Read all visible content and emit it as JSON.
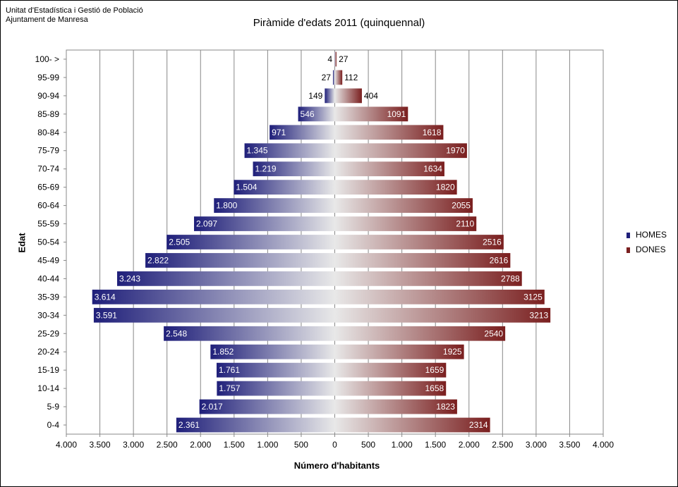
{
  "source": {
    "line1": "Unitat d'Estadística i Gestió de Població",
    "line2": "Ajuntament de Manresa"
  },
  "chart_data": {
    "type": "bar",
    "orientation": "horizontal-population-pyramid",
    "title": "Piràmide d'edats 2011 (quinquennal)",
    "xlabel": "Número d'habitants",
    "ylabel": "Edat",
    "xlim": [
      -4000,
      4000
    ],
    "x_ticks": [
      -4000,
      -3500,
      -3000,
      -2500,
      -2000,
      -1500,
      -1000,
      -500,
      0,
      500,
      1000,
      1500,
      2000,
      2500,
      3000,
      3500,
      4000
    ],
    "x_tick_labels": [
      "4.000",
      "3.500",
      "3.000",
      "2.500",
      "2.000",
      "1.500",
      "1.000",
      "500",
      "0",
      "500",
      "1.000",
      "1.500",
      "2.000",
      "2.500",
      "3.000",
      "3.500",
      "4.000"
    ],
    "grid": "vertical",
    "legend_position": "right",
    "categories": [
      "100- >",
      "95-99",
      "90-94",
      "85-89",
      "80-84",
      "75-79",
      "70-74",
      "65-69",
      "60-64",
      "55-59",
      "50-54",
      "45-49",
      "40-44",
      "35-39",
      "30-34",
      "25-29",
      "20-24",
      "15-19",
      "10-14",
      "5-9",
      "0-4"
    ],
    "series": [
      {
        "name": "HOMES",
        "color": "#1f1f7a",
        "values": [
          4,
          27,
          149,
          546,
          971,
          1345,
          1219,
          1504,
          1800,
          2097,
          2505,
          2822,
          3243,
          3614,
          3591,
          2548,
          1852,
          1761,
          1757,
          2017,
          2361
        ],
        "labels": [
          "4",
          "27",
          "149",
          "546",
          "971",
          "1.345",
          "1.219",
          "1.504",
          "1.800",
          "2.097",
          "2.505",
          "2.822",
          "3.243",
          "3.614",
          "3.591",
          "2.548",
          "1.852",
          "1.761",
          "1.757",
          "2.017",
          "2.361"
        ]
      },
      {
        "name": "DONES",
        "color": "#7a1f1f",
        "values": [
          27,
          112,
          404,
          1091,
          1618,
          1970,
          1634,
          1820,
          2055,
          2110,
          2516,
          2616,
          2788,
          3125,
          3213,
          2540,
          1925,
          1659,
          1658,
          1823,
          2314
        ],
        "labels": [
          "27",
          "112",
          "404",
          "1091",
          "1618",
          "1970",
          "1634",
          "1820",
          "2055",
          "2110",
          "2516",
          "2616",
          "2788",
          "3125",
          "3213",
          "2540",
          "1925",
          "1659",
          "1658",
          "1823",
          "2314"
        ]
      }
    ]
  }
}
